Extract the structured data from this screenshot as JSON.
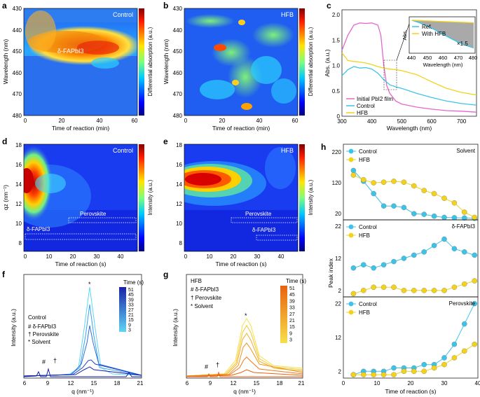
{
  "colors": {
    "cyan": "#3ec3e8",
    "yellow": "#f2d21a",
    "magenta": "#e467cc",
    "black": "#111111"
  },
  "panels": {
    "a": {
      "letter": "a",
      "tag": "Control",
      "xlabel": "Time of reaction (min)",
      "ylabel": "Wavelength (nm)",
      "cbar_label": "Differential absorption (a.u.)",
      "xticks": [
        "0",
        "20",
        "40",
        "60"
      ],
      "yticks": [
        "430",
        "440",
        "450",
        "460",
        "470",
        "480"
      ],
      "annotation": "δ-FAPbI3"
    },
    "b": {
      "letter": "b",
      "tag": "HFB",
      "xlabel": "Time of reaction (min)",
      "ylabel": "Wavelength (nm)",
      "cbar_label": "Differential absorption (a.u.)",
      "xticks": [
        "0",
        "20",
        "40",
        "60"
      ],
      "yticks": [
        "430",
        "440",
        "450",
        "460",
        "470",
        "480"
      ]
    },
    "d": {
      "letter": "d",
      "tag": "Control",
      "xlabel": "Time of reaction (s)",
      "ylabel": "qz (nm⁻¹)",
      "cbar_label": "Intensity (a.u.)",
      "xticks": [
        "0",
        "10",
        "20",
        "30",
        "40"
      ],
      "yticks": [
        "8",
        "10",
        "12",
        "14",
        "16",
        "18"
      ],
      "box1": "Perovskite",
      "box2": "δ-FAPbI3"
    },
    "e": {
      "letter": "e",
      "tag": "HFB",
      "xlabel": "Time of reaction (s)",
      "ylabel": "",
      "cbar_label": "Intensity (a.u.)",
      "xticks": [
        "0",
        "10",
        "20",
        "30",
        "40"
      ],
      "yticks": [
        "8",
        "10",
        "12",
        "14",
        "16",
        "18"
      ],
      "box1": "Perovskite",
      "box2": "δ-FAPbI3"
    },
    "f": {
      "letter": "f",
      "title": "Control",
      "legend_title": "Time (s)",
      "legend_labels": [
        "51",
        "45",
        "39",
        "33",
        "27",
        "21",
        "15",
        "9",
        "3"
      ],
      "keys": [
        "# δ-FAPbI3",
        "† Perovskite",
        "* Solvent"
      ],
      "xlabel": "q (nm⁻¹)",
      "ylabel": "Intensity (a.u.)",
      "xticks": [
        "6",
        "9",
        "12",
        "15",
        "18",
        "21"
      ]
    },
    "g": {
      "letter": "g",
      "title": "HFB",
      "legend_title": "Time (s)",
      "legend_labels": [
        "51",
        "45",
        "39",
        "33",
        "27",
        "21",
        "15",
        "9",
        "3"
      ],
      "keys": [
        "# δ-FAPbI3",
        "† Perovskite",
        "* Solvent"
      ],
      "xlabel": "q (nm⁻¹)",
      "ylabel": "Intensity (a.u.)",
      "xticks": [
        "6",
        "9",
        "12",
        "15",
        "18",
        "21"
      ]
    }
  },
  "chart_data": [
    {
      "id": "c",
      "type": "line",
      "title": "",
      "xlabel": "Wavelength (nm)",
      "ylabel": "Abs. (a.u.)",
      "xlim": [
        300,
        750
      ],
      "ylim": [
        0,
        2.1
      ],
      "xticks": [
        "300",
        "400",
        "500",
        "600",
        "700"
      ],
      "yticks": [
        "0",
        "0.5",
        "1.0",
        "1.5",
        "2.0"
      ],
      "series": [
        {
          "name": "Initial PbI2 film",
          "color": "#e467cc",
          "x": [
            300,
            320,
            340,
            360,
            380,
            400,
            420,
            430,
            440,
            450,
            460,
            480,
            500,
            550,
            600,
            650,
            700,
            750
          ],
          "y": [
            1.3,
            1.6,
            1.8,
            1.84,
            1.83,
            1.84,
            1.8,
            1.6,
            1.0,
            0.6,
            0.45,
            0.3,
            0.24,
            0.18,
            0.14,
            0.11,
            0.1,
            0.08
          ]
        },
        {
          "name": "Control",
          "color": "#3ec3e8",
          "x": [
            300,
            320,
            340,
            360,
            380,
            400,
            420,
            440,
            460,
            480,
            500,
            550,
            600,
            650,
            700,
            750
          ],
          "y": [
            0.8,
            0.92,
            0.98,
            0.95,
            0.96,
            0.93,
            0.85,
            0.72,
            0.62,
            0.58,
            0.55,
            0.45,
            0.37,
            0.3,
            0.25,
            0.22
          ]
        },
        {
          "name": "HFB",
          "color": "#f2d21a",
          "x": [
            300,
            320,
            340,
            360,
            380,
            400,
            420,
            440,
            460,
            480,
            500,
            550,
            600,
            650,
            700,
            750
          ],
          "y": [
            1.25,
            1.1,
            1.08,
            1.07,
            1.05,
            1.02,
            0.98,
            0.95,
            0.93,
            0.92,
            0.9,
            0.82,
            0.68,
            0.55,
            0.47,
            0.42
          ]
        }
      ],
      "inset": {
        "xlabel": "Wavelength (nm)",
        "ylabel": "Abs.",
        "xticks": [
          "440",
          "450",
          "460",
          "470",
          "480"
        ],
        "legend": [
          "Ref.",
          "With HFB"
        ],
        "annotation": "×1.5",
        "series": [
          {
            "name": "Ref.",
            "color": "#3ec3e8",
            "x": [
              440,
              445,
              450,
              455,
              460,
              465,
              470,
              475,
              480
            ],
            "y": [
              0.98,
              0.9,
              0.8,
              0.68,
              0.55,
              0.42,
              0.3,
              0.2,
              0.12
            ]
          },
          {
            "name": "With HFB",
            "color": "#f2d21a",
            "x": [
              440,
              445,
              450,
              455,
              460,
              465,
              470,
              475,
              480
            ],
            "y": [
              0.98,
              0.97,
              0.96,
              0.95,
              0.94,
              0.93,
              0.92,
              0.91,
              0.9
            ]
          }
        ]
      }
    },
    {
      "id": "h1",
      "type": "line",
      "tag": "Solvent",
      "xlabel": "",
      "ylabel": "",
      "xlim": [
        0,
        40
      ],
      "ylim": [
        0,
        245
      ],
      "yticks": [
        "20",
        "120",
        "220"
      ],
      "series": [
        {
          "name": "Control",
          "color": "#3ec3e8",
          "x": [
            3,
            6,
            9,
            12,
            15,
            18,
            21,
            24,
            27,
            30,
            33,
            36,
            39
          ],
          "y": [
            160,
            125,
            85,
            45,
            45,
            40,
            20,
            18,
            12,
            8,
            7,
            6,
            5
          ]
        },
        {
          "name": "HFB",
          "color": "#f2d21a",
          "x": [
            3,
            6,
            9,
            12,
            15,
            18,
            21,
            24,
            27,
            30,
            33,
            36,
            39
          ],
          "y": [
            145,
            130,
            120,
            122,
            125,
            122,
            110,
            95,
            85,
            70,
            55,
            25,
            8
          ]
        }
      ]
    },
    {
      "id": "h2",
      "type": "line",
      "tag": "δ-FAPbI3",
      "xlabel": "",
      "ylabel": "Peak index",
      "xlim": [
        0,
        40
      ],
      "ylim": [
        0,
        24
      ],
      "yticks": [
        "2",
        "12",
        "22"
      ],
      "series": [
        {
          "name": "Control",
          "color": "#3ec3e8",
          "x": [
            3,
            6,
            9,
            12,
            15,
            18,
            21,
            24,
            27,
            30,
            33,
            36,
            39
          ],
          "y": [
            9,
            10,
            9,
            10,
            11,
            12,
            13,
            14,
            16,
            18,
            15,
            14,
            13
          ]
        },
        {
          "name": "HFB",
          "color": "#f2d21a",
          "x": [
            3,
            6,
            9,
            12,
            15,
            18,
            21,
            24,
            27,
            30,
            33,
            36,
            39
          ],
          "y": [
            1,
            2,
            3,
            3,
            3,
            2,
            2,
            2,
            2,
            2,
            3,
            4,
            5
          ]
        }
      ]
    },
    {
      "id": "h3",
      "type": "line",
      "tag": "Perovskite",
      "xlabel": "Time of reaction (s)",
      "ylabel": "",
      "xlim": [
        0,
        40
      ],
      "ylim": [
        0,
        24
      ],
      "yticks": [
        "2",
        "12",
        "22"
      ],
      "xticks": [
        "0",
        "10",
        "20",
        "30",
        "40"
      ],
      "series": [
        {
          "name": "Control",
          "color": "#3ec3e8",
          "x": [
            3,
            6,
            9,
            12,
            15,
            18,
            21,
            24,
            27,
            30,
            33,
            36,
            39
          ],
          "y": [
            1,
            2,
            2,
            2,
            3,
            3,
            3,
            4,
            4,
            6,
            10,
            16,
            22
          ]
        },
        {
          "name": "HFB",
          "color": "#f2d21a",
          "x": [
            3,
            6,
            9,
            12,
            15,
            18,
            21,
            24,
            27,
            30,
            33,
            36,
            39
          ],
          "y": [
            1,
            1,
            1,
            1,
            1,
            2,
            2,
            2,
            3,
            4,
            6,
            8,
            10
          ]
        }
      ]
    }
  ]
}
